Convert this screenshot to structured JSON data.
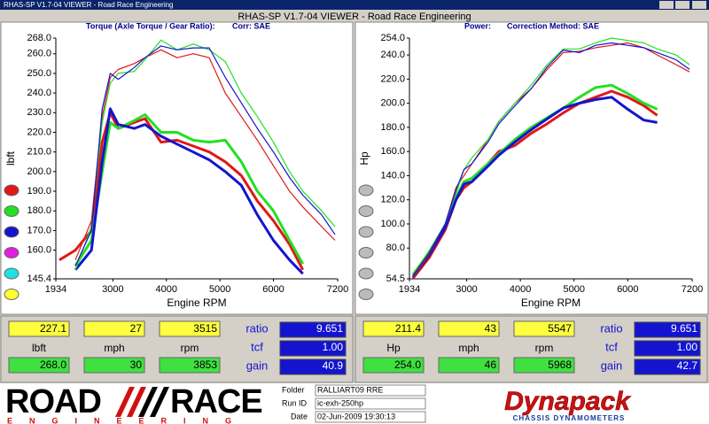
{
  "window_title": "RHAS-SP V1.7-04  VIEWER - Road Race Engineering",
  "header_title": "RHAS-SP V1.7-04  VIEWER - Road Race Engineering",
  "chart_data": [
    {
      "type": "line",
      "title": "Torque (Axle Torque / Gear Ratio):",
      "subtitle": "Corr: SAE",
      "x_label": "Engine RPM",
      "y_label": "lbft",
      "xlim": [
        1934,
        7200
      ],
      "xticks": [
        1934,
        3000,
        4000,
        5000,
        6000,
        7200
      ],
      "ylim": [
        145.4,
        268.0
      ],
      "yticks": [
        {
          "value": 268.0,
          "label": "268.0"
        },
        {
          "value": 260,
          "label": "260.0"
        },
        {
          "value": 250,
          "label": "250.0"
        },
        {
          "value": 240,
          "label": "240.0"
        },
        {
          "value": 230,
          "label": "230.0"
        },
        {
          "value": 220,
          "label": "220.0"
        },
        {
          "value": 210,
          "label": "210.0"
        },
        {
          "value": 200,
          "label": "200.0"
        },
        {
          "value": 190,
          "label": "190.0"
        },
        {
          "value": 180,
          "label": "180.0"
        },
        {
          "value": 170,
          "label": "170.0"
        },
        {
          "value": 160,
          "label": "160.0"
        },
        {
          "value": 145.4,
          "label": "145.4"
        }
      ],
      "x": [
        2000,
        2300,
        2600,
        2800,
        2950,
        3100,
        3400,
        3600,
        3900,
        4200,
        4500,
        4800,
        5100,
        5400,
        5700,
        6000,
        6300,
        6550,
        6900,
        7150
      ],
      "series": [
        {
          "color": "#e01818",
          "values": [
            155,
            160,
            170,
            215,
            230,
            222,
            225,
            227,
            215,
            216,
            213,
            210,
            205,
            198,
            185,
            175,
            163,
            150,
            null,
            null
          ]
        },
        {
          "color": "#22e022",
          "values": [
            null,
            152,
            165,
            200,
            225,
            222,
            226,
            229,
            220,
            220,
            216,
            215,
            216,
            205,
            190,
            180,
            165,
            153,
            null,
            null
          ]
        },
        {
          "color": "#1414d0",
          "values": [
            null,
            150,
            160,
            205,
            232,
            224,
            222,
            224,
            218,
            214,
            210,
            206,
            200,
            193,
            178,
            165,
            155,
            148,
            null,
            null
          ]
        },
        {
          "color": "#e01818",
          "values": [
            null,
            155,
            175,
            228,
            248,
            252,
            255,
            258,
            262,
            258,
            260,
            258,
            240,
            228,
            216,
            203,
            190,
            182,
            172,
            165
          ]
        },
        {
          "color": "#22e022",
          "values": [
            null,
            150,
            172,
            225,
            245,
            250,
            251,
            257,
            267,
            262,
            265,
            262,
            256,
            240,
            228,
            215,
            200,
            190,
            180,
            172
          ]
        },
        {
          "color": "#1414d0",
          "values": [
            null,
            152,
            170,
            232,
            250,
            247,
            253,
            258,
            264,
            262,
            263,
            263,
            248,
            235,
            222,
            210,
            197,
            188,
            178,
            168
          ]
        }
      ]
    },
    {
      "type": "line",
      "title": "Power:",
      "subtitle": "Correction Method: SAE",
      "x_label": "Engine RPM",
      "y_label": "Hp",
      "xlim": [
        1934,
        7200
      ],
      "xticks": [
        1934,
        3000,
        4000,
        5000,
        6000,
        7200
      ],
      "ylim": [
        54.5,
        254.0
      ],
      "yticks": [
        {
          "value": 254.0,
          "label": "254.0"
        },
        {
          "value": 240,
          "label": "240.0"
        },
        {
          "value": 220,
          "label": "220.0"
        },
        {
          "value": 200,
          "label": "200.0"
        },
        {
          "value": 180,
          "label": "180.0"
        },
        {
          "value": 160,
          "label": "160.0"
        },
        {
          "value": 140,
          "label": "140.0"
        },
        {
          "value": 120,
          "label": "120.0"
        },
        {
          "value": 100,
          "label": "100.0"
        },
        {
          "value": 80,
          "label": "80.0"
        },
        {
          "value": 54.5,
          "label": "54.5"
        }
      ],
      "x": [
        2000,
        2300,
        2600,
        2800,
        2950,
        3100,
        3400,
        3600,
        3900,
        4200,
        4500,
        4800,
        5100,
        5400,
        5700,
        6000,
        6300,
        6550,
        6900,
        7150
      ],
      "series": [
        {
          "color": "#e01818",
          "values": [
            55,
            72,
            95,
            120,
            130,
            135,
            150,
            160,
            165,
            175,
            183,
            192,
            200,
            205,
            210,
            205,
            198,
            190,
            null,
            null
          ]
        },
        {
          "color": "#22e022",
          "values": [
            58,
            76,
            98,
            122,
            135,
            138,
            150,
            158,
            170,
            180,
            188,
            196,
            205,
            213,
            215,
            208,
            200,
            195,
            null,
            null
          ]
        },
        {
          "color": "#1414d0",
          "values": [
            56,
            74,
            97,
            120,
            133,
            135,
            148,
            157,
            168,
            178,
            187,
            196,
            200,
            203,
            205,
            195,
            186,
            184,
            null,
            null
          ]
        },
        {
          "color": "#e01818",
          "values": [
            55,
            75,
            100,
            130,
            140,
            150,
            170,
            185,
            200,
            212,
            228,
            242,
            243,
            246,
            248,
            250,
            246,
            240,
            232,
            226
          ]
        },
        {
          "color": "#22e022",
          "values": [
            58,
            78,
            100,
            125,
            145,
            155,
            170,
            185,
            200,
            215,
            232,
            245,
            245,
            250,
            254,
            252,
            250,
            245,
            240,
            232
          ]
        },
        {
          "color": "#1414d0",
          "values": [
            57,
            76,
            100,
            128,
            145,
            150,
            168,
            183,
            198,
            212,
            230,
            244,
            242,
            248,
            250,
            248,
            246,
            242,
            236,
            228
          ]
        }
      ]
    }
  ],
  "readouts": [
    {
      "current": [
        "227.1",
        "27",
        "3515"
      ],
      "labels": [
        "lbft",
        "mph",
        "rpm"
      ],
      "peak": [
        "268.0",
        "30",
        "3853"
      ],
      "side_labels": [
        "ratio",
        "tcf",
        "gain"
      ],
      "side_values": [
        "9.651",
        "1.00",
        "40.9"
      ]
    },
    {
      "current": [
        "211.4",
        "43",
        "5547"
      ],
      "labels": [
        "Hp",
        "mph",
        "rpm"
      ],
      "peak": [
        "254.0",
        "46",
        "5968"
      ],
      "side_labels": [
        "ratio",
        "tcf",
        "gain"
      ],
      "side_values": [
        "9.651",
        "1.00",
        "42.7"
      ]
    }
  ],
  "footer": {
    "logo_left": "ROAD",
    "logo_right": "RACE",
    "logo_sub": "ENGINEERING",
    "folder_label": "Folder",
    "folder": "RALLIART09 RRE",
    "runid_label": "Run ID",
    "runid": "ic-exh-250hp",
    "date_label": "Date",
    "date": "02-Jun-2009  19:30:13",
    "brand": "Dynapack",
    "brand_sub": "CHASSIS  DYNAMOMETERS"
  }
}
